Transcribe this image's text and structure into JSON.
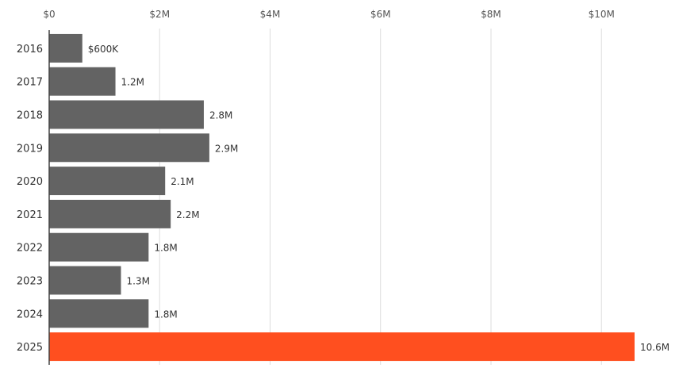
{
  "chart_data": {
    "type": "bar",
    "orientation": "horizontal",
    "categories": [
      "2016",
      "2017",
      "2018",
      "2019",
      "2020",
      "2021",
      "2022",
      "2023",
      "2024",
      "2025"
    ],
    "values": [
      600000,
      1200000,
      2800000,
      2900000,
      2100000,
      2200000,
      1800000,
      1300000,
      1800000,
      10600000
    ],
    "value_labels": [
      "$600K",
      "1.2M",
      "2.8M",
      "2.9M",
      "2.1M",
      "2.2M",
      "1.8M",
      "1.3M",
      "1.8M",
      "10.6M"
    ],
    "x_ticks": [
      0,
      2000000,
      4000000,
      6000000,
      8000000,
      10000000
    ],
    "x_tick_labels": [
      "$0",
      "$2M",
      "$4M",
      "$6M",
      "$8M",
      "$10M"
    ],
    "xlim": [
      0,
      10600000
    ],
    "x_axis_position": "top",
    "grid": true,
    "colors": {
      "default": "#636363",
      "highlight": "#ff4f1f",
      "highlight_category": "2025"
    }
  }
}
